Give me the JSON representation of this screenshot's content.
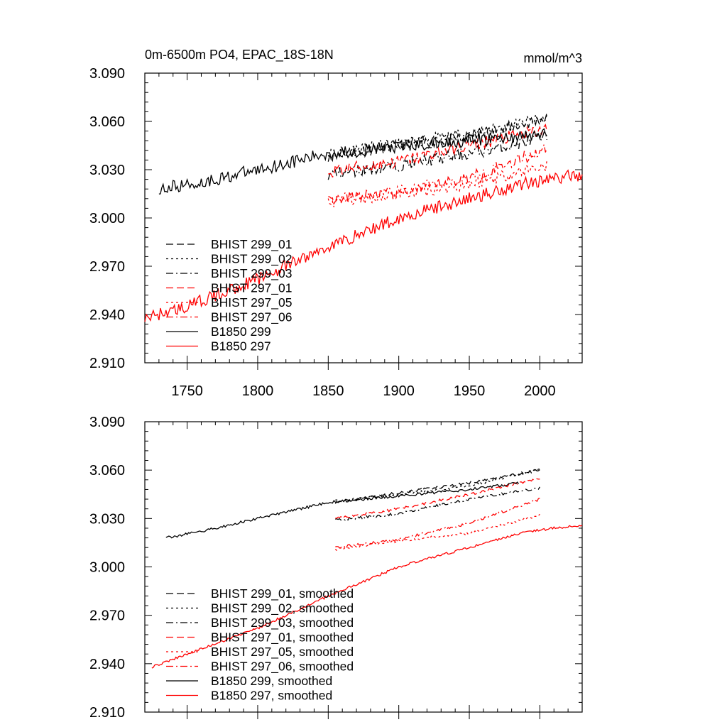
{
  "header": {
    "title": "0m-6500m PO4, EPAC_18S-18N",
    "units": "mmol/m^3"
  },
  "colors": {
    "black": "#000000",
    "red": "#ff0000"
  },
  "chart_data": [
    {
      "type": "line",
      "title": "0m-6500m PO4, EPAC_18S-18N",
      "xlabel": "",
      "ylabel": "",
      "xlim": [
        1720,
        2030
      ],
      "ylim": [
        2.91,
        3.09
      ],
      "xticks": [
        1750,
        1800,
        1850,
        1900,
        1950,
        2000
      ],
      "xtick_labels": [
        "1750",
        "1800",
        "1850",
        "1900",
        "1950",
        "2000"
      ],
      "yticks": [
        2.91,
        2.94,
        2.97,
        3.0,
        3.03,
        3.06,
        3.09
      ],
      "ytick_labels": [
        "2.910",
        "2.940",
        "2.970",
        "3.000",
        "3.030",
        "3.060",
        "3.090"
      ],
      "legend_position": "lower-left",
      "noise": 0.004,
      "series": [
        {
          "name": "BHIST 299_01",
          "color": "#000000",
          "dash": "dash",
          "x": [
            1850,
            1900,
            1950,
            2005
          ],
          "y": [
            3.039,
            3.045,
            3.05,
            3.062
          ]
        },
        {
          "name": "BHIST 299_02",
          "color": "#000000",
          "dash": "dot",
          "x": [
            1850,
            1900,
            1950,
            2005
          ],
          "y": [
            3.04,
            3.046,
            3.052,
            3.062
          ]
        },
        {
          "name": "BHIST 299_03",
          "color": "#000000",
          "dash": "dashdot",
          "x": [
            1850,
            1900,
            1950,
            2005
          ],
          "y": [
            3.027,
            3.033,
            3.04,
            3.05
          ]
        },
        {
          "name": "BHIST 297_01",
          "color": "#ff0000",
          "dash": "dash",
          "x": [
            1850,
            1900,
            1950,
            2005
          ],
          "y": [
            3.029,
            3.035,
            3.045,
            3.055
          ]
        },
        {
          "name": "BHIST 297_05",
          "color": "#ff0000",
          "dash": "dot",
          "x": [
            1850,
            1900,
            1950,
            2005
          ],
          "y": [
            3.01,
            3.015,
            3.021,
            3.033
          ]
        },
        {
          "name": "BHIST 297_06",
          "color": "#ff0000",
          "dash": "dashdot",
          "x": [
            1850,
            1900,
            1950,
            2005
          ],
          "y": [
            3.011,
            3.016,
            3.025,
            3.043
          ]
        },
        {
          "name": "B1850 299",
          "color": "#000000",
          "dash": "solid",
          "x": [
            1730,
            1760,
            1800,
            1850,
            1900,
            1950,
            2005
          ],
          "y": [
            3.018,
            3.022,
            3.03,
            3.04,
            3.044,
            3.048,
            3.052
          ]
        },
        {
          "name": "B1850 297",
          "color": "#ff0000",
          "dash": "solid",
          "x": [
            1720,
            1750,
            1800,
            1850,
            1900,
            1950,
            1990,
            2030
          ],
          "y": [
            2.938,
            2.945,
            2.962,
            2.982,
            3.0,
            3.012,
            3.022,
            3.027
          ]
        }
      ]
    },
    {
      "type": "line",
      "title": "",
      "xlabel": "",
      "ylabel": "",
      "xlim": [
        1720,
        2030
      ],
      "ylim": [
        2.91,
        3.09
      ],
      "xticks": [
        1750,
        1800,
        1850,
        1900,
        1950,
        2000
      ],
      "xtick_labels": [],
      "yticks": [
        2.91,
        2.94,
        2.97,
        3.0,
        3.03,
        3.06,
        3.09
      ],
      "ytick_labels": [
        "2.910",
        "2.940",
        "2.970",
        "3.000",
        "3.030",
        "3.060",
        "3.090"
      ],
      "legend_position": "lower-left",
      "noise": 0.0008,
      "series": [
        {
          "name": "BHIST 299_01, smoothed",
          "color": "#000000",
          "dash": "dash",
          "x": [
            1855,
            1900,
            1950,
            2000
          ],
          "y": [
            3.04,
            3.046,
            3.052,
            3.06
          ]
        },
        {
          "name": "BHIST 299_02, smoothed",
          "color": "#000000",
          "dash": "dot",
          "x": [
            1855,
            1900,
            1950,
            2000
          ],
          "y": [
            3.041,
            3.045,
            3.05,
            3.061
          ]
        },
        {
          "name": "BHIST 299_03, smoothed",
          "color": "#000000",
          "dash": "dashdot",
          "x": [
            1855,
            1900,
            1950,
            2000
          ],
          "y": [
            3.029,
            3.033,
            3.042,
            3.049
          ]
        },
        {
          "name": "BHIST 297_01, smoothed",
          "color": "#ff0000",
          "dash": "dash",
          "x": [
            1855,
            1900,
            1950,
            2000
          ],
          "y": [
            3.03,
            3.036,
            3.045,
            3.055
          ]
        },
        {
          "name": "BHIST 297_05, smoothed",
          "color": "#ff0000",
          "dash": "dot",
          "x": [
            1855,
            1900,
            1950,
            2000
          ],
          "y": [
            3.011,
            3.016,
            3.021,
            3.032
          ]
        },
        {
          "name": "BHIST 297_06, smoothed",
          "color": "#ff0000",
          "dash": "dashdot",
          "x": [
            1855,
            1900,
            1950,
            2000
          ],
          "y": [
            3.012,
            3.017,
            3.027,
            3.042
          ]
        },
        {
          "name": "B1850 299, smoothed",
          "color": "#000000",
          "dash": "solid",
          "x": [
            1735,
            1760,
            1800,
            1850,
            1900,
            1950,
            1985
          ],
          "y": [
            3.018,
            3.022,
            3.03,
            3.04,
            3.044,
            3.048,
            3.052
          ]
        },
        {
          "name": "B1850 297, smoothed",
          "color": "#ff0000",
          "dash": "solid",
          "x": [
            1725,
            1750,
            1800,
            1850,
            1900,
            1950,
            1990,
            2030
          ],
          "y": [
            2.938,
            2.946,
            2.962,
            2.982,
            3.0,
            3.012,
            3.022,
            3.026
          ]
        }
      ]
    }
  ]
}
